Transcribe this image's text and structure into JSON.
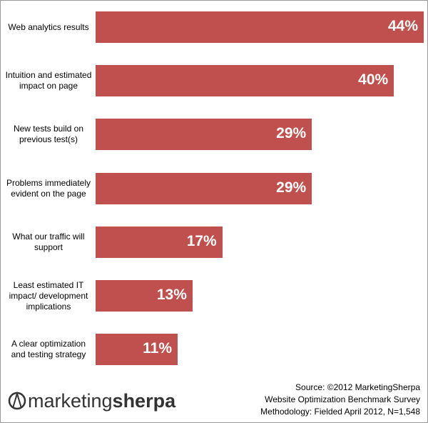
{
  "chart_data": {
    "type": "bar",
    "orientation": "horizontal",
    "categories": [
      "Web analytics results",
      "Intuition and estimated impact on page",
      "New tests build on previous test(s)",
      "Problems immediately evident on the page",
      "What our traffic will support",
      "Least estimated IT impact/ development implications",
      "A clear optimization and testing strategy"
    ],
    "values": [
      44,
      40,
      29,
      29,
      17,
      13,
      11
    ],
    "value_labels": [
      "44%",
      "40%",
      "29%",
      "29%",
      "17%",
      "13%",
      "11%"
    ],
    "color": "#c0504d",
    "source": [
      "Source: ©2012 MarketingSherpa",
      "Website Optimization Benchmark Survey",
      "Methodology: Fielded April 2012, N=1,548"
    ],
    "logo": {
      "light": "marketing",
      "bold": "sherpa"
    }
  }
}
